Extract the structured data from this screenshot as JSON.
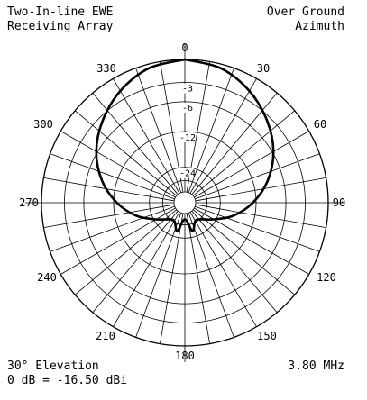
{
  "header": {
    "left_line1": "Two-In-line EWE",
    "left_line2": "Receiving Array",
    "right_line1": "Over Ground",
    "right_line2": "Azimuth"
  },
  "footer": {
    "left_line1": "30° Elevation",
    "left_line2": "0 dB = -16.50 dBi",
    "right_line1": "3.80 MHz"
  },
  "chart_data": {
    "type": "polar",
    "angle_labels": [
      "0",
      "30",
      "60",
      "90",
      "120",
      "150",
      "180",
      "210",
      "240",
      "270",
      "300",
      "330"
    ],
    "radial_labels": [
      "-3",
      "-6",
      "-12",
      "-24"
    ],
    "radial_db": [
      -3,
      -6,
      -12,
      -24
    ],
    "min_db": -40,
    "angle_unit": "degrees azimuth",
    "series": [
      {
        "azimuth_deg": [
          0,
          15,
          30,
          45,
          60,
          75,
          90,
          105,
          120,
          135,
          150,
          165,
          180,
          195,
          210,
          225,
          240,
          255,
          270,
          285,
          300,
          315,
          330,
          345,
          360
        ],
        "gain_db": [
          0,
          -0.5,
          -1.8,
          -3.6,
          -5.8,
          -8.8,
          -12.8,
          -18,
          -25,
          -31,
          -33,
          -27,
          -37,
          -27,
          -33,
          -31,
          -25,
          -18,
          -12.8,
          -8.8,
          -5.8,
          -3.6,
          -1.8,
          -0.5,
          0
        ]
      }
    ]
  }
}
